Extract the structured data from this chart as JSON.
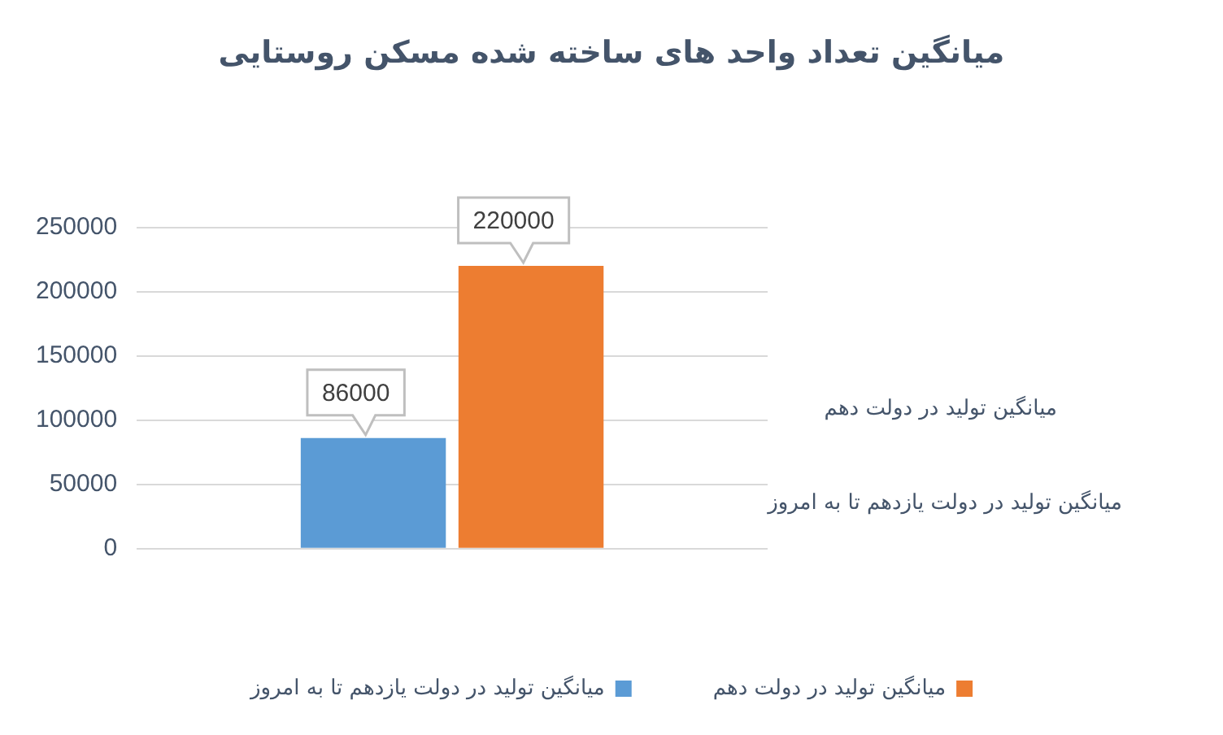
{
  "chart_data": {
    "type": "bar",
    "title": "میانگین تعداد واحد های ساخته شده مسکن روستایی",
    "categories": [
      null
    ],
    "series": [
      {
        "name": "میانگین تولید در دولت یازدهم تا به امروز",
        "color": "#5b9bd5",
        "values": [
          86000
        ]
      },
      {
        "name": "میانگین تولید در دولت دهم",
        "color": "#ed7d31",
        "values": [
          220000
        ]
      }
    ],
    "ylim": [
      0,
      250000
    ],
    "yticks": [
      0,
      50000,
      100000,
      150000,
      200000,
      250000
    ],
    "grid": "y",
    "legend": "bottom",
    "data_labels": true
  }
}
